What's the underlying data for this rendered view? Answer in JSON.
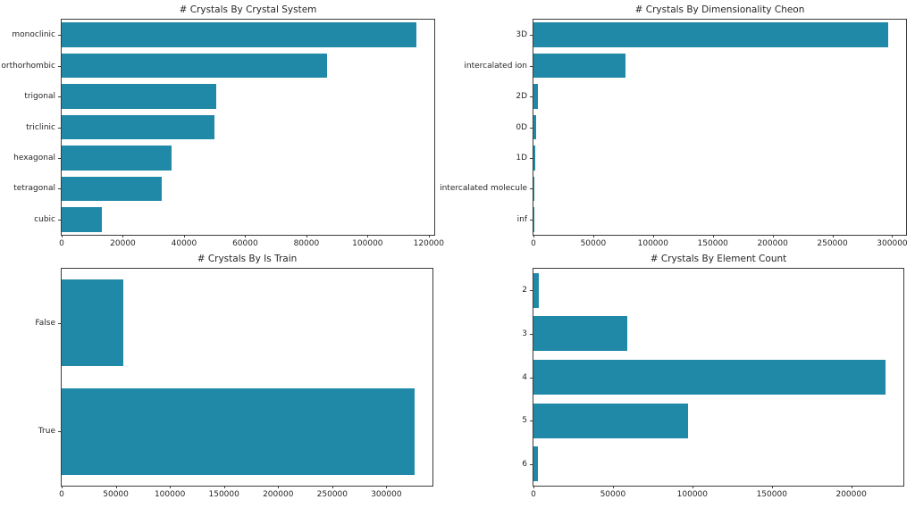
{
  "figure": {
    "background": "#ffffff",
    "bar_color": "#2189a8",
    "spine_color": "#3c3c3c",
    "text_color": "#262626"
  },
  "chart_data": [
    {
      "type": "bar",
      "orientation": "horizontal",
      "title": "# Crystals By Crystal System",
      "categories": [
        "monoclinic",
        "orthorhombic",
        "trigonal",
        "triclinic",
        "hexagonal",
        "tetragonal",
        "cubic"
      ],
      "values": [
        115900,
        86800,
        50400,
        49900,
        35900,
        32600,
        13200
      ],
      "xlabel": "",
      "ylabel": "",
      "xlim": [
        0,
        121800
      ],
      "xticks": [
        0,
        20000,
        40000,
        60000,
        80000,
        100000,
        120000
      ],
      "grid": false,
      "legend": "none"
    },
    {
      "type": "bar",
      "orientation": "horizontal",
      "title": "# Crystals By Dimensionality Cheon",
      "categories": [
        "3D",
        "intercalated ion",
        "2D",
        "0D",
        "1D",
        "intercalated molecule",
        "inf"
      ],
      "values": [
        296700,
        77300,
        3500,
        2500,
        1300,
        250,
        60
      ],
      "xlabel": "",
      "ylabel": "",
      "xlim": [
        0,
        311600
      ],
      "xticks": [
        0,
        50000,
        100000,
        150000,
        200000,
        250000,
        300000
      ],
      "grid": false,
      "legend": "none"
    },
    {
      "type": "bar",
      "orientation": "horizontal",
      "title": "# Crystals By Is Train",
      "categories": [
        "False",
        "True"
      ],
      "values": [
        56600,
        326300
      ],
      "xlabel": "",
      "ylabel": "",
      "xlim": [
        0,
        342600
      ],
      "xticks": [
        0,
        50000,
        100000,
        150000,
        200000,
        250000,
        300000
      ],
      "grid": false,
      "legend": "none"
    },
    {
      "type": "bar",
      "orientation": "horizontal",
      "title": "# Crystals By Element Count",
      "categories": [
        "2",
        "3",
        "4",
        "5",
        "6"
      ],
      "values": [
        3300,
        59000,
        221700,
        97400,
        3000
      ],
      "xlabel": "",
      "ylabel": "",
      "xlim": [
        0,
        232800
      ],
      "xticks": [
        0,
        50000,
        100000,
        150000,
        200000
      ],
      "grid": false,
      "legend": "none"
    }
  ]
}
